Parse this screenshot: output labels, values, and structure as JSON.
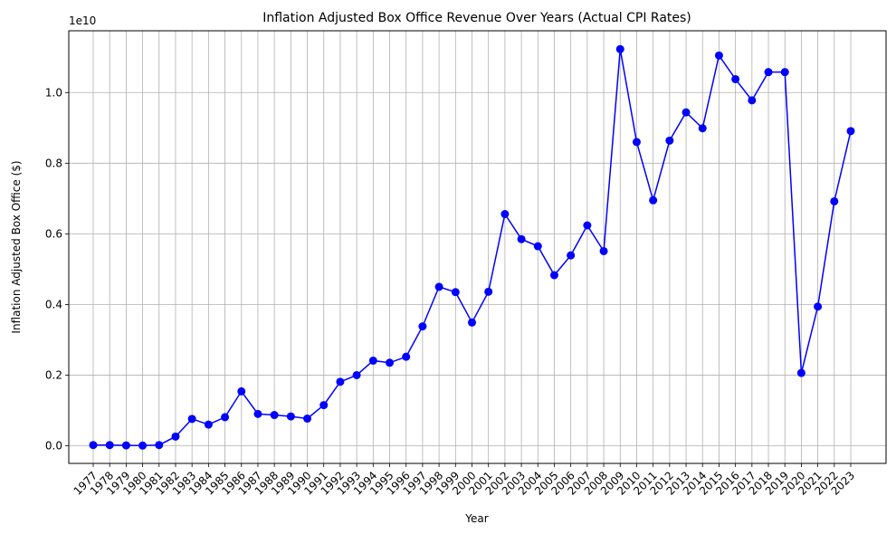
{
  "chart_data": {
    "type": "line",
    "title": "Inflation Adjusted Box Office Revenue Over Years (Actual CPI Rates)",
    "xlabel": "Year",
    "ylabel": "Inflation Adjusted Box Office ($)",
    "y_scale_label": "1e10",
    "y_tick_labels": [
      "0.0",
      "0.2",
      "0.4",
      "0.6",
      "0.8",
      "1.0"
    ],
    "y_tick_values": [
      0,
      2000000000,
      4000000000,
      6000000000,
      8000000000,
      10000000000
    ],
    "ylim": [
      -500000000,
      11750000000
    ],
    "grid": true,
    "line_color": "#0000ff",
    "marker": "circle",
    "categories": [
      "1977",
      "1978",
      "1979",
      "1980",
      "1981",
      "1982",
      "1983",
      "1984",
      "1985",
      "1986",
      "1987",
      "1988",
      "1989",
      "1990",
      "1991",
      "1992",
      "1993",
      "1994",
      "1995",
      "1996",
      "1997",
      "1998",
      "1999",
      "2000",
      "2001",
      "2002",
      "2003",
      "2004",
      "2005",
      "2006",
      "2007",
      "2008",
      "2009",
      "2010",
      "2011",
      "2012",
      "2013",
      "2014",
      "2015",
      "2016",
      "2017",
      "2018",
      "2019",
      "2020",
      "2021",
      "2022",
      "2023"
    ],
    "series": [
      {
        "values": [
          20000000,
          20000000,
          10000000,
          5000000,
          20000000,
          260000000,
          760000000,
          600000000,
          810000000,
          1540000000,
          900000000,
          870000000,
          830000000,
          770000000,
          1150000000,
          1810000000,
          2000000000,
          2410000000,
          2350000000,
          2520000000,
          3380000000,
          4500000000,
          4350000000,
          3490000000,
          4360000000,
          6560000000,
          5850000000,
          5650000000,
          4830000000,
          5390000000,
          6240000000,
          5510000000,
          11230000000,
          8600000000,
          6950000000,
          8640000000,
          9440000000,
          8990000000,
          11050000000,
          10380000000,
          9780000000,
          10580000000,
          10580000000,
          2060000000,
          3940000000,
          6920000000,
          8910000000
        ]
      }
    ]
  }
}
